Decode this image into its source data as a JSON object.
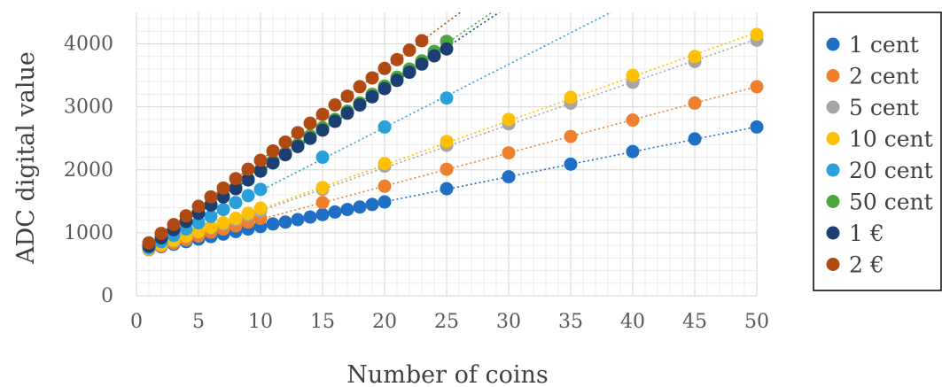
{
  "chart_data": {
    "type": "scatter",
    "xlabel": "Number of coins",
    "ylabel": "ADC digital value",
    "xlim": [
      0,
      50
    ],
    "ylim": [
      0,
      4500
    ],
    "x_ticks": [
      "0",
      "5",
      "10",
      "15",
      "20",
      "25",
      "30",
      "35",
      "40",
      "45",
      "50"
    ],
    "y_ticks": [
      "0",
      "1000",
      "2000",
      "3000",
      "4000"
    ],
    "grid": true,
    "legend_position": "right",
    "trendlines": "linear, dotted",
    "series": [
      {
        "name": "1 cent",
        "color": "#1f6fc5",
        "x": [
          1,
          2,
          3,
          4,
          5,
          6,
          7,
          8,
          9,
          10,
          11,
          12,
          13,
          14,
          15,
          16,
          17,
          18,
          19,
          20,
          25,
          30,
          35,
          40,
          45,
          50
        ],
        "y": [
          740,
          780,
          820,
          860,
          900,
          940,
          980,
          1020,
          1060,
          1100,
          1140,
          1170,
          1210,
          1250,
          1290,
          1330,
          1370,
          1410,
          1450,
          1490,
          1700,
          1890,
          2090,
          2290,
          2490,
          2680
        ]
      },
      {
        "name": "2 cent",
        "color": "#f07f2d",
        "x": [
          1,
          2,
          3,
          4,
          5,
          6,
          7,
          8,
          9,
          10,
          15,
          20,
          25,
          30,
          35,
          40,
          45,
          50
        ],
        "y": [
          730,
          790,
          840,
          890,
          950,
          1010,
          1060,
          1110,
          1170,
          1230,
          1480,
          1740,
          2010,
          2270,
          2530,
          2790,
          3060,
          3320
        ]
      },
      {
        "name": "5 cent",
        "color": "#a5a5a5",
        "x": [
          1,
          2,
          3,
          4,
          5,
          6,
          7,
          8,
          9,
          10,
          15,
          20,
          25,
          30,
          35,
          40,
          45,
          50
        ],
        "y": [
          730,
          800,
          870,
          940,
          1010,
          1080,
          1140,
          1210,
          1280,
          1350,
          1690,
          2060,
          2390,
          2730,
          3060,
          3390,
          3720,
          4060
        ]
      },
      {
        "name": "10 cent",
        "color": "#ffc000",
        "x": [
          1,
          2,
          3,
          4,
          5,
          6,
          7,
          8,
          9,
          10,
          15,
          20,
          25,
          30,
          35,
          40,
          45,
          50
        ],
        "y": [
          740,
          810,
          880,
          950,
          1020,
          1090,
          1160,
          1230,
          1310,
          1390,
          1720,
          2100,
          2450,
          2800,
          3150,
          3500,
          3800,
          4150
        ]
      },
      {
        "name": "20 cent",
        "color": "#2aa0db",
        "x": [
          1,
          2,
          3,
          4,
          5,
          6,
          7,
          8,
          9,
          10,
          15,
          20,
          25
        ],
        "y": [
          760,
          860,
          960,
          1060,
          1160,
          1260,
          1370,
          1480,
          1590,
          1690,
          2200,
          2680,
          3140
        ]
      },
      {
        "name": "50 cent",
        "color": "#4ca63c",
        "x": [
          1,
          2,
          3,
          4,
          5,
          6,
          7,
          8,
          9,
          10,
          11,
          12,
          13,
          14,
          15,
          16,
          17,
          18,
          19,
          20,
          21,
          22,
          23,
          24,
          25
        ],
        "y": [
          800,
          930,
          1060,
          1190,
          1320,
          1450,
          1590,
          1720,
          1860,
          2000,
          2140,
          2270,
          2400,
          2540,
          2670,
          2800,
          2930,
          3060,
          3200,
          3330,
          3470,
          3600,
          3730,
          3880,
          4040
        ]
      },
      {
        "name": "1 €",
        "color": "#1b3f73",
        "x": [
          1,
          2,
          3,
          4,
          5,
          6,
          7,
          8,
          9,
          10,
          11,
          12,
          13,
          14,
          15,
          16,
          17,
          18,
          19,
          20,
          21,
          22,
          23,
          24,
          25
        ],
        "y": [
          790,
          920,
          1050,
          1180,
          1310,
          1440,
          1570,
          1700,
          1840,
          1980,
          2110,
          2240,
          2370,
          2500,
          2630,
          2770,
          2900,
          3030,
          3160,
          3290,
          3420,
          3550,
          3680,
          3810,
          3920
        ]
      },
      {
        "name": "2 €",
        "color": "#b04a12",
        "x": [
          1,
          2,
          3,
          4,
          5,
          6,
          7,
          8,
          9,
          10,
          11,
          12,
          13,
          14,
          15,
          16,
          17,
          18,
          19,
          20,
          21,
          22,
          23
        ],
        "y": [
          840,
          990,
          1130,
          1270,
          1420,
          1570,
          1710,
          1860,
          2010,
          2150,
          2300,
          2440,
          2590,
          2740,
          2880,
          3030,
          3170,
          3320,
          3460,
          3610,
          3750,
          3900,
          4050
        ]
      }
    ]
  }
}
